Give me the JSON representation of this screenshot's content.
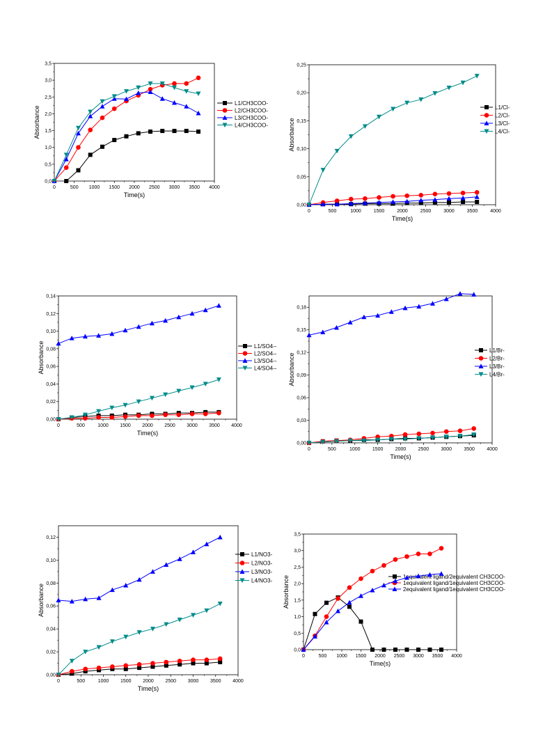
{
  "chart_data": [
    {
      "type": "line",
      "xlabel": "Time(s)",
      "ylabel": "Absorbance",
      "xlim": [
        0,
        4000
      ],
      "ylim": [
        0,
        3.5
      ],
      "xticks": [
        "0",
        "500",
        "1000",
        "1500",
        "2000",
        "2500",
        "3000",
        "3500",
        "4000"
      ],
      "yticks": [
        "0,0",
        "0,5",
        "1,0",
        "1,5",
        "2,0",
        "2,5",
        "3,0",
        "3,5"
      ],
      "legend_position": "right",
      "series": [
        {
          "name": "L1/CH3COO-",
          "color": "#000000",
          "marker": "square",
          "x": [
            300,
            600,
            900,
            1200,
            1500,
            1800,
            2100,
            2400,
            2700,
            3000,
            3300,
            3600
          ],
          "y": [
            0.0,
            0.32,
            0.78,
            1.02,
            1.22,
            1.33,
            1.42,
            1.47,
            1.49,
            1.49,
            1.49,
            1.47
          ]
        },
        {
          "name": "L2/CH3COO-",
          "color": "#ff0000",
          "marker": "circle",
          "x": [
            0,
            300,
            600,
            900,
            1200,
            1500,
            1800,
            2100,
            2400,
            2700,
            3000,
            3300,
            3600
          ],
          "y": [
            0.0,
            0.4,
            1.0,
            1.52,
            1.88,
            2.15,
            2.38,
            2.55,
            2.73,
            2.85,
            2.9,
            2.9,
            3.07
          ]
        },
        {
          "name": "L3/CH3COO-",
          "color": "#0000ff",
          "marker": "triangle-up",
          "x": [
            0,
            300,
            600,
            900,
            1200,
            1500,
            1800,
            2100,
            2400,
            2700,
            3000,
            3300,
            3600
          ],
          "y": [
            0.0,
            0.65,
            1.42,
            1.93,
            2.22,
            2.45,
            2.44,
            2.62,
            2.65,
            2.45,
            2.33,
            2.22,
            2.02
          ]
        },
        {
          "name": "L4/CH3COO-",
          "color": "#008b8b",
          "marker": "triangle-down",
          "x": [
            0,
            300,
            600,
            900,
            1200,
            1500,
            1800,
            2100,
            2400,
            2700,
            3000,
            3300,
            3600
          ],
          "y": [
            0.0,
            0.78,
            1.58,
            2.06,
            2.37,
            2.52,
            2.67,
            2.78,
            2.9,
            2.9,
            2.78,
            2.67,
            2.6
          ]
        }
      ]
    },
    {
      "type": "line",
      "xlabel": "Time(s)",
      "ylabel": "Absorbance",
      "xlim": [
        0,
        4000
      ],
      "ylim": [
        0,
        0.25
      ],
      "xticks": [
        "0",
        "500",
        "1000",
        "1500",
        "2000",
        "2500",
        "3000",
        "3500",
        "4000"
      ],
      "yticks": [
        "0,00",
        "0,05",
        "0,10",
        "0,15",
        "0,20",
        "0,25"
      ],
      "legend_position": "right",
      "series": [
        {
          "name": "L1/Cl-",
          "color": "#000000",
          "marker": "square",
          "x": [
            0,
            300,
            600,
            900,
            1200,
            1500,
            1800,
            2100,
            2400,
            2700,
            3000,
            3300,
            3600
          ],
          "y": [
            0.0,
            0.001,
            0.001,
            0.001,
            0.002,
            0.002,
            0.002,
            0.003,
            0.003,
            0.004,
            0.004,
            0.005,
            0.005
          ]
        },
        {
          "name": "L2/Cl-",
          "color": "#ff0000",
          "marker": "circle",
          "x": [
            0,
            300,
            600,
            900,
            1200,
            1500,
            1800,
            2100,
            2400,
            2700,
            3000,
            3300,
            3600
          ],
          "y": [
            0.0,
            0.004,
            0.007,
            0.01,
            0.011,
            0.013,
            0.015,
            0.016,
            0.017,
            0.019,
            0.02,
            0.021,
            0.022
          ]
        },
        {
          "name": "L3/Cl-",
          "color": "#0000ff",
          "marker": "triangle-up",
          "x": [
            0,
            300,
            600,
            900,
            1200,
            1500,
            1800,
            2100,
            2400,
            2700,
            3000,
            3300,
            3600
          ],
          "y": [
            0.0,
            0.001,
            0.001,
            0.002,
            0.003,
            0.004,
            0.005,
            0.006,
            0.008,
            0.009,
            0.011,
            0.012,
            0.014
          ]
        },
        {
          "name": "L4/Cl-",
          "color": "#008b8b",
          "marker": "triangle-down",
          "x": [
            0,
            300,
            600,
            900,
            1200,
            1500,
            1800,
            2100,
            2400,
            2700,
            3000,
            3300,
            3600
          ],
          "y": [
            0.0,
            0.062,
            0.096,
            0.122,
            0.14,
            0.157,
            0.171,
            0.182,
            0.188,
            0.199,
            0.209,
            0.218,
            0.23
          ]
        }
      ]
    },
    {
      "type": "line",
      "xlabel": "Time(s)",
      "ylabel": "Absorbance",
      "xlim": [
        0,
        4000
      ],
      "ylim": [
        0,
        0.14
      ],
      "xticks": [
        "0",
        "500",
        "1000",
        "1500",
        "2000",
        "2500",
        "3000",
        "3500",
        "4000"
      ],
      "yticks": [
        "0,00",
        "0,02",
        "0,04",
        "0,06",
        "0,08",
        "0,10",
        "0,12",
        "0,14"
      ],
      "legend_position": "right",
      "series": [
        {
          "name": "L1/SO4--",
          "color": "#000000",
          "marker": "square",
          "x": [
            0,
            300,
            600,
            900,
            1200,
            1500,
            1800,
            2100,
            2400,
            2700,
            3000,
            3300,
            3600
          ],
          "y": [
            0.0,
            0.002,
            0.003,
            0.004,
            0.004,
            0.005,
            0.005,
            0.006,
            0.006,
            0.007,
            0.007,
            0.008,
            0.008
          ]
        },
        {
          "name": "L2/SO4--",
          "color": "#ff0000",
          "marker": "circle",
          "x": [
            0,
            300,
            600,
            900,
            1200,
            1500,
            1800,
            2100,
            2400,
            2700,
            3000,
            3300,
            3600
          ],
          "y": [
            0.0,
            0.001,
            0.001,
            0.002,
            0.002,
            0.003,
            0.004,
            0.004,
            0.005,
            0.005,
            0.006,
            0.006,
            0.007
          ]
        },
        {
          "name": "L3/SO4--",
          "color": "#0000ff",
          "marker": "triangle-up",
          "x": [
            0,
            300,
            600,
            900,
            1200,
            1500,
            1800,
            2100,
            2400,
            2700,
            3000,
            3300,
            3600
          ],
          "y": [
            0.086,
            0.092,
            0.094,
            0.095,
            0.097,
            0.101,
            0.105,
            0.109,
            0.112,
            0.116,
            0.12,
            0.124,
            0.129
          ]
        },
        {
          "name": "L4/SO4--",
          "color": "#008b8b",
          "marker": "triangle-down",
          "x": [
            0,
            300,
            600,
            900,
            1200,
            1500,
            1800,
            2100,
            2400,
            2700,
            3000,
            3300,
            3600
          ],
          "y": [
            0.0,
            0.002,
            0.005,
            0.009,
            0.013,
            0.016,
            0.02,
            0.024,
            0.028,
            0.032,
            0.036,
            0.04,
            0.045
          ]
        }
      ]
    },
    {
      "type": "line",
      "xlabel": "Time(s)",
      "ylabel": "Absorbance",
      "xlim": [
        0,
        4000
      ],
      "ylim": [
        0,
        0.195
      ],
      "xticks": [
        "0",
        "500",
        "1000",
        "1500",
        "2000",
        "2500",
        "3000",
        "3500",
        "4000"
      ],
      "yticks": [
        "0,00",
        "0,03",
        "0,06",
        "0,09",
        "0,12",
        "0,15",
        "0,18"
      ],
      "legend_position": "right",
      "series": [
        {
          "name": "L1/Br-",
          "color": "#000000",
          "marker": "square",
          "x": [
            0,
            300,
            600,
            900,
            1200,
            1500,
            1800,
            2100,
            2400,
            2700,
            3000,
            3300,
            3600
          ],
          "y": [
            0.0,
            0.002,
            0.003,
            0.003,
            0.004,
            0.004,
            0.005,
            0.006,
            0.006,
            0.007,
            0.008,
            0.009,
            0.01
          ]
        },
        {
          "name": "L2/Br-",
          "color": "#ff0000",
          "marker": "circle",
          "x": [
            0,
            300,
            600,
            900,
            1200,
            1500,
            1800,
            2100,
            2400,
            2700,
            3000,
            3300,
            3600
          ],
          "y": [
            0.0,
            0.002,
            0.003,
            0.004,
            0.006,
            0.008,
            0.009,
            0.011,
            0.012,
            0.013,
            0.015,
            0.016,
            0.019
          ]
        },
        {
          "name": "L3/Br-",
          "color": "#0000ff",
          "marker": "triangle-up",
          "x": [
            0,
            300,
            600,
            900,
            1200,
            1500,
            1800,
            2100,
            2400,
            2700,
            3000,
            3300,
            3600
          ],
          "y": [
            0.143,
            0.147,
            0.153,
            0.16,
            0.167,
            0.169,
            0.174,
            0.179,
            0.181,
            0.185,
            0.191,
            0.198,
            0.197
          ]
        },
        {
          "name": "L4/Br-",
          "color": "#008b8b",
          "marker": "triangle-down",
          "x": [
            0,
            300,
            600,
            900,
            1200,
            1500,
            1800,
            2100,
            2400,
            2700,
            3000,
            3300,
            3600
          ],
          "y": [
            0.0,
            0.001,
            0.002,
            0.003,
            0.003,
            0.004,
            0.005,
            0.005,
            0.006,
            0.007,
            0.008,
            0.009,
            0.011
          ]
        }
      ]
    },
    {
      "type": "line",
      "xlabel": "Time(s)",
      "ylabel": "Absorbance",
      "xlim": [
        0,
        4000
      ],
      "ylim": [
        0,
        0.13
      ],
      "xticks": [
        "0",
        "500",
        "1000",
        "1500",
        "2000",
        "2500",
        "3000",
        "3500",
        "4000"
      ],
      "yticks": [
        "0,00",
        "0,02",
        "0,04",
        "0,06",
        "0,08",
        "0,10",
        "0,12"
      ],
      "legend_position": "right",
      "series": [
        {
          "name": "L1/NO3-",
          "color": "#000000",
          "marker": "square",
          "x": [
            0,
            300,
            600,
            900,
            1200,
            1500,
            1800,
            2100,
            2400,
            2700,
            3000,
            3300,
            3600
          ],
          "y": [
            0.0,
            0.001,
            0.003,
            0.004,
            0.005,
            0.005,
            0.006,
            0.007,
            0.008,
            0.009,
            0.01,
            0.01,
            0.011
          ]
        },
        {
          "name": "L2/NO3-",
          "color": "#ff0000",
          "marker": "circle",
          "x": [
            0,
            300,
            600,
            900,
            1200,
            1500,
            1800,
            2100,
            2400,
            2700,
            3000,
            3300,
            3600
          ],
          "y": [
            0.0,
            0.003,
            0.005,
            0.006,
            0.007,
            0.008,
            0.009,
            0.01,
            0.011,
            0.012,
            0.013,
            0.013,
            0.014
          ]
        },
        {
          "name": "L3/NO3-",
          "color": "#0000ff",
          "marker": "triangle-up",
          "x": [
            0,
            300,
            600,
            900,
            1200,
            1500,
            1800,
            2100,
            2400,
            2700,
            3000,
            3300,
            3600
          ],
          "y": [
            0.065,
            0.064,
            0.066,
            0.067,
            0.074,
            0.078,
            0.083,
            0.09,
            0.096,
            0.101,
            0.107,
            0.114,
            0.12
          ]
        },
        {
          "name": "L4/NO3-",
          "color": "#008b8b",
          "marker": "triangle-down",
          "x": [
            0,
            300,
            600,
            900,
            1200,
            1500,
            1800,
            2100,
            2400,
            2700,
            3000,
            3300,
            3600
          ],
          "y": [
            0.0,
            0.012,
            0.02,
            0.024,
            0.029,
            0.033,
            0.037,
            0.04,
            0.044,
            0.048,
            0.052,
            0.056,
            0.062
          ]
        }
      ]
    },
    {
      "type": "line",
      "xlabel": "Time(s)",
      "ylabel": "Absorbance",
      "xlim": [
        0,
        4000
      ],
      "ylim": [
        0,
        3.5
      ],
      "xticks": [
        "0",
        "500",
        "1000",
        "1500",
        "2000",
        "2500",
        "3000",
        "3500",
        "4000"
      ],
      "yticks": [
        "0,0",
        "0,5",
        "1,0",
        "1,5",
        "2,0",
        "2,5",
        "3,0",
        "3,5"
      ],
      "legend_position": "right",
      "series": [
        {
          "name": "1equivalent ligand/2equivalent CH3COO-",
          "color": "#000000",
          "marker": "square",
          "x": [
            0,
            300,
            600,
            900,
            1200,
            1500,
            1800,
            2100,
            2400,
            2700,
            3000,
            3300,
            3600
          ],
          "y": [
            0.0,
            1.08,
            1.42,
            1.58,
            1.3,
            0.85,
            0.0,
            0.0,
            0.0,
            0.0,
            0.0,
            0.0,
            0.0
          ]
        },
        {
          "name": "1equivalent ligand/1equivalent CH3COO-",
          "color": "#ff0000",
          "marker": "circle",
          "x": [
            0,
            300,
            600,
            900,
            1200,
            1500,
            1800,
            2100,
            2400,
            2700,
            3000,
            3300,
            3600
          ],
          "y": [
            0.0,
            0.42,
            1.0,
            1.55,
            1.88,
            2.15,
            2.38,
            2.55,
            2.73,
            2.82,
            2.9,
            2.9,
            3.07
          ]
        },
        {
          "name": "2equivalent ligand/1equivalent CH3COO-",
          "color": "#0000ff",
          "marker": "triangle-up",
          "x": [
            0,
            300,
            600,
            900,
            1200,
            1500,
            1800,
            2100,
            2400,
            2700,
            3000,
            3300,
            3600
          ],
          "y": [
            0.0,
            0.4,
            0.83,
            1.17,
            1.43,
            1.63,
            1.8,
            1.95,
            2.08,
            2.18,
            2.23,
            2.27,
            2.3
          ]
        }
      ]
    }
  ]
}
